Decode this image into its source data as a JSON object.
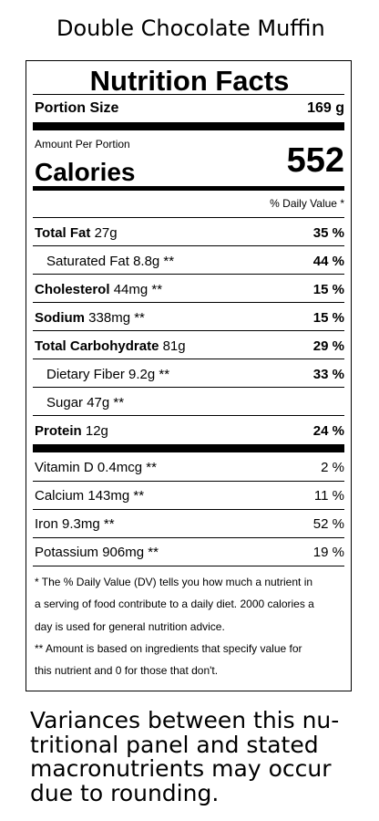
{
  "title": "Double Chocolate Muffin",
  "label": {
    "heading": "Nutrition Facts",
    "portion_label": "Portion Size",
    "portion_value": "169 g",
    "amount_per": "Amount Per Portion",
    "calories_label": "Calories",
    "calories_value": "552",
    "dv_header": "% Daily Value *",
    "nutrients": [
      {
        "name": "Total Fat",
        "amount": "27g",
        "dv": "35 %",
        "bold": true,
        "indent": false
      },
      {
        "name": "Saturated Fat",
        "amount": "8.8g **",
        "dv": "44 %",
        "bold": false,
        "indent": true
      },
      {
        "name": "Cholesterol",
        "amount": "44mg **",
        "dv": "15 %",
        "bold": true,
        "indent": false
      },
      {
        "name": "Sodium",
        "amount": "338mg **",
        "dv": "15 %",
        "bold": true,
        "indent": false
      },
      {
        "name": "Total Carbohydrate",
        "amount": "81g",
        "dv": "29 %",
        "bold": true,
        "indent": false
      },
      {
        "name": "Dietary Fiber",
        "amount": "9.2g **",
        "dv": "33 %",
        "bold": false,
        "indent": true
      },
      {
        "name": "Sugar",
        "amount": "47g **",
        "bold": false,
        "indent": true
      },
      {
        "name": "Protein",
        "amount": "12g",
        "dv": "24 %",
        "bold": true,
        "indent": false
      }
    ],
    "vitamins": [
      {
        "name": "Vitamin D",
        "amount": "0.4mcg **",
        "dv": "2 %"
      },
      {
        "name": "Calcium",
        "amount": "143mg **",
        "dv": "11 %"
      },
      {
        "name": "Iron",
        "amount": "9.3mg **",
        "dv": "52 %"
      },
      {
        "name": "Potassium",
        "amount": "906mg **",
        "dv": "19 %"
      }
    ],
    "footnotes": [
      "* The % Daily Value (DV) tells you how much a nutrient in",
      "a serving of food contribute to a daily diet. 2000 calories a",
      "day is used for general nutrition advice.",
      "** Amount is based on ingredients that specify value for",
      "this nutrient and 0 for those that don't."
    ]
  },
  "note": [
    "Variances between this nu-",
    "tritional panel and stated",
    "macronutrients may occur",
    "due to rounding."
  ]
}
